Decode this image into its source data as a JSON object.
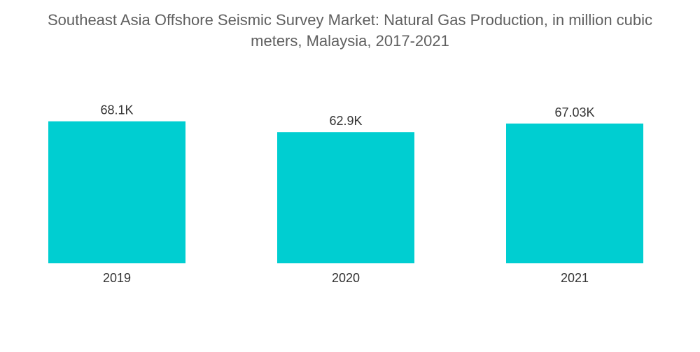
{
  "title_lines": [
    "Southeast Asia Offshore Seismic Survey Market: Natural Gas Production, in million cubic",
    "meters, Malaysia, 2017-2021"
  ],
  "chart_data": {
    "type": "bar",
    "title": "Southeast Asia Offshore Seismic Survey Market: Natural Gas Production, in million cubic meters, Malaysia, 2017-2021",
    "xlabel": "",
    "ylabel": "",
    "categories": [
      "2019",
      "2020",
      "2021"
    ],
    "values": [
      68100,
      62900,
      67030
    ],
    "data_labels": [
      "68.1K",
      "62.9K",
      "67.03K"
    ],
    "ylim": [
      0,
      70000
    ],
    "grid": false,
    "legend": "none",
    "bar_color": "#00CED1"
  }
}
